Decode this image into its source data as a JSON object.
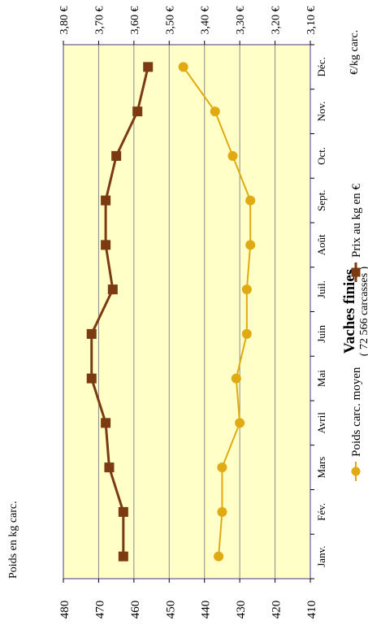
{
  "chart_data": {
    "type": "line",
    "title": "Vaches finies",
    "subtitle": "( 72 566 carcasses )",
    "categories": [
      "Janv.",
      "Fév.",
      "Mars",
      "Avril",
      "Mai",
      "Juin",
      "Juil.",
      "Août",
      "Sept.",
      "Oct.",
      "Nov.",
      "Déc."
    ],
    "weight_axis": {
      "label": "Poids en kg carc.",
      "range": [
        410,
        480
      ],
      "ticks": [
        "480",
        "470",
        "460",
        "450",
        "440",
        "430",
        "420",
        "410"
      ],
      "tick_values": [
        480,
        470,
        460,
        450,
        440,
        430,
        420,
        410
      ]
    },
    "price_axis": {
      "label": "€/kg carc.",
      "range": [
        3.1,
        3.8
      ],
      "ticks": [
        "3,80 €",
        "3,70 €",
        "3,60 €",
        "3,50 €",
        "3,40 €",
        "3,30 €",
        "3,20 €",
        "3,10 €"
      ],
      "tick_values": [
        3.8,
        3.7,
        3.6,
        3.5,
        3.4,
        3.3,
        3.2,
        3.1
      ]
    },
    "series": [
      {
        "name": "Poids carc. moyen",
        "axis": "weight",
        "color": "#e0aa10",
        "marker": "circle",
        "values": [
          436,
          435,
          435,
          430,
          431,
          428,
          428,
          427,
          427,
          432,
          437,
          446
        ]
      },
      {
        "name": "Prix au kg en €",
        "axis": "price",
        "color": "#7b3a12",
        "marker": "square",
        "values": [
          3.63,
          3.63,
          3.67,
          3.68,
          3.72,
          3.72,
          3.66,
          3.68,
          3.68,
          3.65,
          3.59,
          3.56
        ]
      }
    ],
    "grid": true,
    "plot_background": "#ffffc8",
    "legend_position": "bottom"
  }
}
